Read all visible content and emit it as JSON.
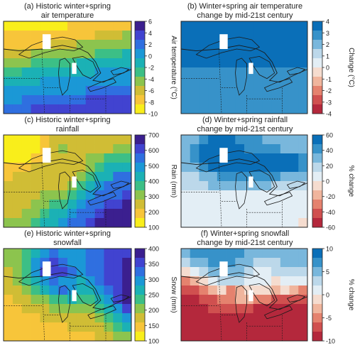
{
  "chart_data": [
    {
      "type": "heatmap",
      "title": "(a) Historic winter+spring",
      "subtitle": "air temperature",
      "colorbar_label": "Air temperature (°C)",
      "colorbar_ticks": [
        "6",
        "4",
        "2",
        "0",
        "-2",
        "-4",
        "-6",
        "-8",
        "-10"
      ],
      "colors": [
        "#3b1f8f",
        "#4143d0",
        "#2f6fe0",
        "#1b98d6",
        "#1bb1b5",
        "#3cbf86",
        "#8cc44e",
        "#d0bd35",
        "#f7c53a",
        "#f9ee1b"
      ],
      "value_range": [
        -10,
        6
      ],
      "grid_values": [
        [
          -9,
          -9,
          -9,
          -9,
          -9,
          -9,
          -9,
          -8,
          -8,
          -8,
          -7,
          -7,
          -7,
          -7
        ],
        [
          -8,
          -8,
          -8,
          -8,
          -8,
          -8,
          -7,
          -7,
          -7,
          -7,
          -6,
          -6,
          -6,
          -5
        ],
        [
          -7,
          -7,
          -7,
          -7,
          -7,
          -6,
          -6,
          -6,
          -5,
          -5,
          -5,
          -4,
          -4,
          -4
        ],
        [
          -6,
          -6,
          -6,
          -5,
          -5,
          -5,
          -5,
          -4,
          -4,
          -4,
          -3,
          -3,
          -3,
          -2
        ],
        [
          -4,
          -4,
          -4,
          -3,
          -3,
          -3,
          -3,
          -3,
          -2,
          -2,
          -2,
          -1,
          -1,
          -1
        ],
        [
          -3,
          -3,
          -2,
          -2,
          -2,
          -2,
          -1,
          -1,
          -1,
          -1,
          0,
          0,
          0,
          0
        ],
        [
          -1,
          -1,
          -1,
          -1,
          0,
          0,
          0,
          0,
          0,
          1,
          1,
          1,
          1,
          1
        ],
        [
          0,
          0,
          0,
          1,
          1,
          1,
          1,
          1,
          1,
          2,
          2,
          2,
          2,
          2
        ],
        [
          1,
          1,
          2,
          2,
          2,
          2,
          2,
          2,
          2,
          3,
          3,
          3,
          3,
          3
        ],
        [
          2,
          2,
          2,
          3,
          3,
          3,
          3,
          3,
          3,
          3,
          4,
          4,
          4,
          4
        ]
      ]
    },
    {
      "type": "heatmap",
      "title": "(b) Winter+spring air temperature",
      "subtitle": "change by mid-21st century",
      "colorbar_label": "Change (°C)",
      "colorbar_ticks": [
        "4",
        "3",
        "2",
        "1",
        "0",
        "-1",
        "-2",
        "-3",
        "-4"
      ],
      "colors": [
        "#0a6fb8",
        "#3792c9",
        "#79b7dc",
        "#bcd8ea",
        "#e3eef5",
        "#f5dccf",
        "#f0b59d",
        "#e5826e",
        "#d0504f",
        "#b4283c"
      ],
      "value_range": [
        -4,
        4
      ],
      "grid_values": [
        [
          3.5,
          3.5,
          3.5,
          3.5,
          3.5,
          3.5,
          3.5,
          3.5,
          3.5,
          3.5,
          3.5,
          3.5,
          3.5,
          3.5
        ],
        [
          3.5,
          3.5,
          3.5,
          3.5,
          3.5,
          3.5,
          3.5,
          3.5,
          3.5,
          3.5,
          3.5,
          3.5,
          3.5,
          3.5
        ],
        [
          3.5,
          3.5,
          3.5,
          3.5,
          3.5,
          3.5,
          3.5,
          3.5,
          3.5,
          3.5,
          3.5,
          3.5,
          3.5,
          3.5
        ],
        [
          3.5,
          3.5,
          3.5,
          3.5,
          3.5,
          3.5,
          3.5,
          3.5,
          3.5,
          3.5,
          3.5,
          3.5,
          3.5,
          3.5
        ],
        [
          3.5,
          3.5,
          3.5,
          3.5,
          3.5,
          3.5,
          3.5,
          3.5,
          3.5,
          3.5,
          3.5,
          3.5,
          3.5,
          3.5
        ],
        [
          2.7,
          2.7,
          2.7,
          2.7,
          2.7,
          2.7,
          2.7,
          2.7,
          2.7,
          2.7,
          2.7,
          2.7,
          2.7,
          2.7
        ],
        [
          2.7,
          2.7,
          2.7,
          2.7,
          2.7,
          2.7,
          2.7,
          2.7,
          2.7,
          2.7,
          2.7,
          2.7,
          2.7,
          2.7
        ],
        [
          2.7,
          2.7,
          2.7,
          2.7,
          2.7,
          2.7,
          2.7,
          2.7,
          2.7,
          2.7,
          2.7,
          2.7,
          2.7,
          2.7
        ],
        [
          2.7,
          2.7,
          2.7,
          2.7,
          2.7,
          2.7,
          2.7,
          2.7,
          2.7,
          2.7,
          2.7,
          2.7,
          2.7,
          2.7
        ],
        [
          2.7,
          2.7,
          2.7,
          2.7,
          2.7,
          2.7,
          2.7,
          2.7,
          2.7,
          2.7,
          2.7,
          2.7,
          2.7,
          2.7
        ]
      ]
    },
    {
      "type": "heatmap",
      "title": "(c) Historic winter+spring",
      "subtitle": "rainfall",
      "colorbar_label": "Rain (mm)",
      "colorbar_ticks": [
        "700",
        "600",
        "500",
        "400",
        "300",
        "200",
        "100"
      ],
      "colors": [
        "#3b1f8f",
        "#4143d0",
        "#2f6fe0",
        "#1b98d6",
        "#1bb1b5",
        "#3cbf86",
        "#8cc44e",
        "#d0bd35",
        "#f7c53a",
        "#f9ee1b"
      ],
      "value_range": [
        100,
        700
      ],
      "grid_values": [
        [
          120,
          120,
          120,
          130,
          160,
          240,
          240,
          240,
          240,
          240,
          240,
          240,
          240,
          240
        ],
        [
          120,
          120,
          120,
          120,
          180,
          240,
          280,
          240,
          240,
          240,
          240,
          240,
          300,
          300
        ],
        [
          120,
          120,
          150,
          200,
          200,
          240,
          240,
          240,
          240,
          300,
          300,
          360,
          360,
          360
        ],
        [
          170,
          170,
          200,
          240,
          240,
          240,
          240,
          240,
          240,
          300,
          360,
          440,
          440,
          440
        ],
        [
          170,
          220,
          240,
          240,
          240,
          240,
          240,
          240,
          300,
          360,
          440,
          440,
          520,
          520
        ],
        [
          220,
          220,
          240,
          240,
          240,
          240,
          240,
          300,
          360,
          420,
          500,
          560,
          560,
          560
        ],
        [
          240,
          240,
          240,
          240,
          300,
          300,
          300,
          360,
          420,
          500,
          560,
          560,
          560,
          620
        ],
        [
          240,
          240,
          240,
          300,
          300,
          360,
          360,
          420,
          500,
          560,
          560,
          600,
          600,
          660
        ],
        [
          240,
          240,
          300,
          300,
          360,
          420,
          420,
          500,
          560,
          560,
          600,
          640,
          660,
          680
        ],
        [
          300,
          300,
          300,
          360,
          420,
          420,
          500,
          560,
          560,
          600,
          640,
          680,
          680,
          680
        ]
      ]
    },
    {
      "type": "heatmap",
      "title": "(d) Winter+spring rainfall",
      "subtitle": "change by mid-21st century",
      "colorbar_label": "% change",
      "colorbar_ticks": [
        "60",
        "40",
        "20",
        "0",
        "-20",
        "-40",
        "-60"
      ],
      "colors": [
        "#0a6fb8",
        "#3792c9",
        "#79b7dc",
        "#bcd8ea",
        "#e3eef5",
        "#f5dccf",
        "#f0b59d",
        "#e5826e",
        "#d0504f",
        "#b4283c"
      ],
      "value_range": [
        -60,
        60
      ],
      "grid_values": [
        [
          30,
          35,
          40,
          50,
          50,
          50,
          40,
          40,
          40,
          30,
          30,
          30,
          30,
          30
        ],
        [
          30,
          40,
          50,
          55,
          55,
          55,
          50,
          40,
          40,
          40,
          40,
          30,
          30,
          30
        ],
        [
          30,
          40,
          50,
          55,
          55,
          55,
          55,
          50,
          50,
          50,
          50,
          50,
          50,
          40
        ],
        [
          30,
          30,
          40,
          50,
          50,
          50,
          50,
          50,
          50,
          50,
          50,
          50,
          50,
          40
        ],
        [
          20,
          20,
          30,
          30,
          40,
          40,
          40,
          40,
          40,
          40,
          40,
          30,
          30,
          30
        ],
        [
          20,
          20,
          20,
          30,
          30,
          30,
          30,
          30,
          30,
          30,
          20,
          20,
          20,
          20
        ],
        [
          10,
          10,
          10,
          10,
          10,
          10,
          10,
          10,
          10,
          10,
          10,
          10,
          10,
          10
        ],
        [
          10,
          10,
          10,
          10,
          10,
          10,
          10,
          10,
          10,
          10,
          10,
          10,
          10,
          10
        ],
        [
          10,
          10,
          10,
          10,
          10,
          10,
          10,
          10,
          10,
          10,
          10,
          10,
          10,
          10
        ],
        [
          10,
          10,
          10,
          10,
          10,
          10,
          10,
          10,
          10,
          10,
          10,
          10,
          10,
          -10
        ]
      ]
    },
    {
      "type": "heatmap",
      "title": "(e) Historic winter+spring",
      "subtitle": "snowfall",
      "colorbar_label": "Snow (mm)",
      "colorbar_ticks": [
        "400",
        "350",
        "300",
        "250",
        "200",
        "150",
        "100"
      ],
      "colors": [
        "#3b1f8f",
        "#4143d0",
        "#2f6fe0",
        "#1b98d6",
        "#1bb1b5",
        "#3cbf86",
        "#8cc44e",
        "#d0bd35",
        "#f7c53a",
        "#f9ee1b"
      ],
      "value_range": [
        100,
        400
      ],
      "grid_values": [
        [
          190,
          190,
          220,
          260,
          300,
          320,
          300,
          290,
          300,
          320,
          330,
          340,
          350,
          360
        ],
        [
          190,
          200,
          230,
          280,
          330,
          340,
          320,
          300,
          300,
          320,
          330,
          350,
          360,
          370
        ],
        [
          180,
          200,
          230,
          290,
          350,
          360,
          340,
          310,
          300,
          310,
          330,
          350,
          360,
          370
        ],
        [
          170,
          190,
          220,
          260,
          300,
          310,
          300,
          280,
          270,
          280,
          310,
          340,
          360,
          380
        ],
        [
          160,
          170,
          200,
          230,
          260,
          300,
          330,
          280,
          250,
          260,
          290,
          330,
          360,
          380
        ],
        [
          150,
          160,
          170,
          190,
          210,
          220,
          240,
          260,
          240,
          230,
          260,
          300,
          340,
          370
        ],
        [
          150,
          150,
          160,
          170,
          180,
          190,
          200,
          210,
          210,
          210,
          230,
          260,
          300,
          340
        ],
        [
          150,
          150,
          150,
          150,
          160,
          160,
          170,
          170,
          180,
          180,
          200,
          230,
          270,
          300
        ],
        [
          150,
          150,
          150,
          150,
          150,
          150,
          150,
          160,
          160,
          160,
          180,
          200,
          230,
          260
        ],
        [
          150,
          150,
          150,
          150,
          150,
          150,
          150,
          150,
          150,
          150,
          160,
          170,
          190,
          210
        ]
      ]
    },
    {
      "type": "heatmap",
      "title": "(f) Winter+spring snowfall",
      "subtitle": "change by mid-21st century",
      "colorbar_label": "% change",
      "colorbar_ticks": [
        "10",
        "5",
        "0",
        "-5",
        "-10"
      ],
      "colors": [
        "#0a6fb8",
        "#3792c9",
        "#79b7dc",
        "#bcd8ea",
        "#e3eef5",
        "#f5dccf",
        "#f0b59d",
        "#e5826e",
        "#d0504f",
        "#b4283c"
      ],
      "value_range": [
        -10,
        10
      ],
      "grid_values": [
        [
          5,
          6,
          6,
          7,
          7,
          7,
          6,
          5,
          4,
          4,
          4,
          5,
          5,
          5
        ],
        [
          3,
          4,
          5,
          6,
          6,
          6,
          5,
          4,
          3,
          3,
          3,
          4,
          4,
          4
        ],
        [
          -2,
          0,
          2,
          4,
          5,
          5,
          4,
          3,
          1,
          1,
          2,
          2,
          3,
          3
        ],
        [
          -5,
          -4,
          -2,
          0,
          2,
          3,
          2,
          1,
          0,
          0,
          -1,
          0,
          1,
          1
        ],
        [
          -8,
          -7,
          -5,
          -3,
          -1,
          -5,
          -3,
          -2,
          -1,
          -2,
          -3,
          -2,
          -3,
          -5
        ],
        [
          -9,
          -9,
          -8,
          -7,
          -6,
          -5,
          -4,
          -4,
          -5,
          -6,
          -7,
          -7,
          -8,
          -8
        ],
        [
          -9,
          -9,
          -9,
          -8,
          -8,
          -7,
          -7,
          -8,
          -9,
          -9,
          -9,
          -9,
          -9,
          -9
        ],
        [
          -9,
          -9,
          -9,
          -9,
          -9,
          -9,
          -9,
          -9,
          -9,
          -9,
          -9,
          -9,
          -9,
          -9
        ],
        [
          -9,
          -9,
          -9,
          -9,
          -9,
          -9,
          -9,
          -9,
          -9,
          -9,
          -9,
          -9,
          -9,
          -9
        ],
        [
          -9,
          -9,
          -9,
          -9,
          -9,
          -9,
          -9,
          -9,
          -9,
          -9,
          -9,
          -9,
          -9,
          -9
        ]
      ]
    }
  ]
}
